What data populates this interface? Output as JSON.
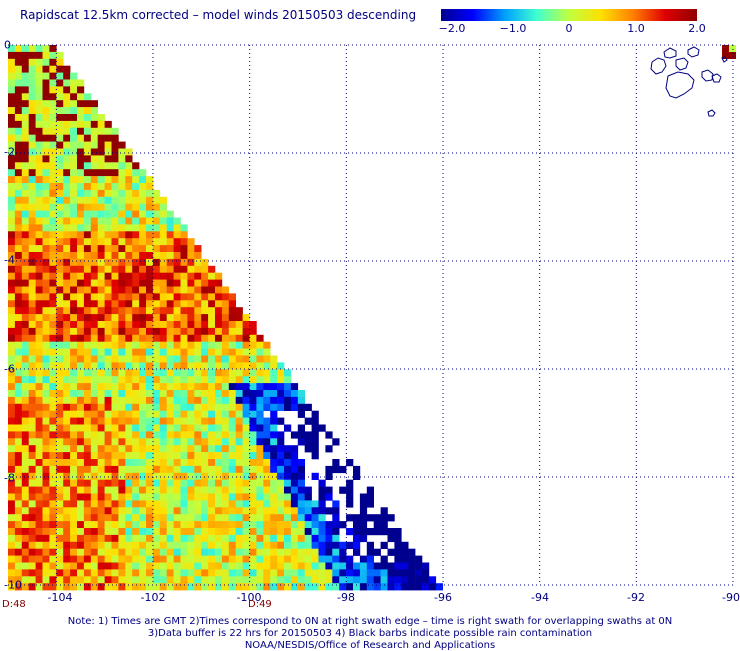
{
  "title": "Rapidscat 12.5km corrected – model winds 20150503 descending",
  "colorbar": {
    "ticks": [
      "−2.0",
      "−1.0",
      "0",
      "1.0",
      "2.0"
    ],
    "colors": [
      "#00008f",
      "#0000ff",
      "#00a0ff",
      "#40ffd0",
      "#c0ff40",
      "#ffe000",
      "#ff8000",
      "#e00000",
      "#8f0000"
    ]
  },
  "map": {
    "lon_labels": [
      "-104",
      "-102",
      "-100",
      "-98",
      "-96",
      "-94",
      "-92",
      "-90"
    ],
    "lat_labels": [
      "0",
      "-2",
      "-4",
      "-6",
      "-8",
      "-10"
    ],
    "lon_range": [
      -105,
      -90
    ],
    "lat_range": [
      -10,
      0
    ],
    "gridlines": true,
    "grid_color": "#000080",
    "coast_color": "#000080"
  },
  "times": [
    "D:48",
    "D:49"
  ],
  "notes": [
    "Note: 1) Times are GMT 2)Times correspond to 0N at right swath edge – time is right swath for overlapping swaths at 0N",
    "3)Data buffer is 22 hrs for 20150503 4) Black barbs indicate possible rain contamination",
    "NOAA/NESDIS/Office of Research and Applications"
  ]
}
